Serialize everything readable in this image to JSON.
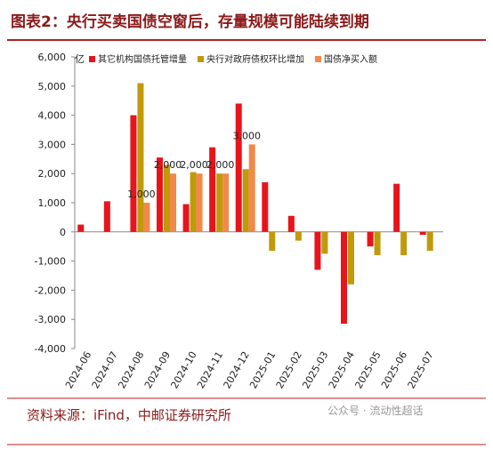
{
  "chart_data": {
    "type": "bar",
    "title": "图表2：央行买卖国债空窗后，存量规模可能陆续到期",
    "y_unit": "亿",
    "source": "资料来源：iFind，中邮证券研究所",
    "watermark": "公众号 · 流动性超话",
    "categories": [
      "2024-06",
      "2024-07",
      "2024-08",
      "2024-09",
      "2024-10",
      "2024-11",
      "2024-12",
      "2025-01",
      "2025-02",
      "2025-03",
      "2025-04",
      "2025-05",
      "2025-06",
      "2025-07"
    ],
    "series": [
      {
        "name": "其它机构国债托管增量",
        "color": "#e8141b",
        "values": [
          250,
          1050,
          4000,
          2550,
          950,
          2900,
          4400,
          1700,
          550,
          -1300,
          -3150,
          -500,
          1650,
          -100
        ]
      },
      {
        "name": "央行对政府债权环比增加",
        "color": "#c19a0b",
        "values": [
          null,
          null,
          5100,
          2300,
          2050,
          2000,
          2150,
          -650,
          -300,
          -750,
          -1800,
          -800,
          -800,
          -650
        ]
      },
      {
        "name": "国债净买入额",
        "color": "#f0894a",
        "values": [
          null,
          null,
          1000,
          2000,
          2000,
          2000,
          3000,
          null,
          null,
          null,
          null,
          null,
          null,
          null
        ],
        "value_labels": [
          null,
          null,
          "1,000",
          "2,000",
          "2,000",
          "2,000",
          "3,000",
          null,
          null,
          null,
          null,
          null,
          null,
          null
        ]
      }
    ],
    "ylim": [
      -4000,
      6000
    ],
    "yticks": [
      {
        "value": -4000,
        "label": "-4,000"
      },
      {
        "value": -3000,
        "label": "-3,000"
      },
      {
        "value": -2000,
        "label": "-2,000"
      },
      {
        "value": -1000,
        "label": "-1,000"
      },
      0,
      {
        "value": 1000,
        "label": "1,000"
      },
      {
        "value": 2000,
        "label": "2,000"
      },
      {
        "value": 3000,
        "label": "3,000"
      },
      {
        "value": 4000,
        "label": "4,000"
      },
      {
        "value": 5000,
        "label": "5,000"
      },
      {
        "value": 6000,
        "label": "6,000"
      }
    ]
  }
}
